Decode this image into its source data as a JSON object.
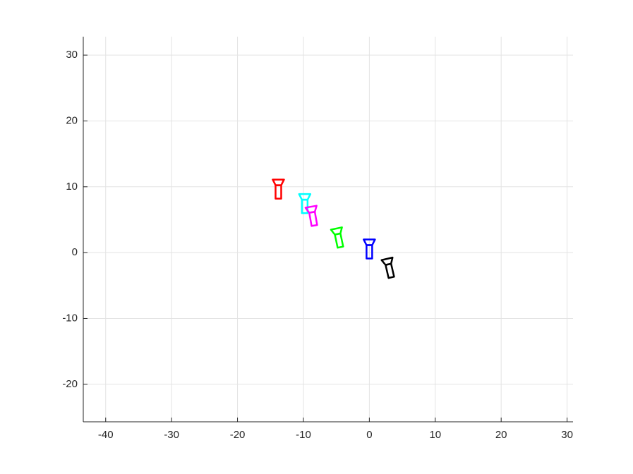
{
  "chart_data": {
    "type": "scatter",
    "xlim": [
      -43.4,
      30.9
    ],
    "ylim": [
      -25.7,
      32.8
    ],
    "xticks": [
      -40,
      -30,
      -20,
      -10,
      0,
      10,
      20,
      30
    ],
    "yticks": [
      -20,
      -10,
      0,
      10,
      20,
      30
    ],
    "grid": true,
    "series": [
      {
        "color": "#ff0000",
        "x": [
          -13.8
        ],
        "values": [
          9.7
        ],
        "rotation": 0
      },
      {
        "color": "#00ffff",
        "x": [
          -9.8
        ],
        "values": [
          7.5
        ],
        "rotation": 0
      },
      {
        "color": "#ff00ff",
        "x": [
          -8.6
        ],
        "values": [
          5.6
        ],
        "rotation": -10
      },
      {
        "color": "#00ff00",
        "x": [
          -4.7
        ],
        "values": [
          2.3
        ],
        "rotation": -12
      },
      {
        "color": "#0000ff",
        "x": [
          0
        ],
        "values": [
          0.6
        ],
        "rotation": 0
      },
      {
        "color": "#000000",
        "x": [
          3.0
        ],
        "values": [
          -2.3
        ],
        "rotation": -13
      }
    ]
  }
}
